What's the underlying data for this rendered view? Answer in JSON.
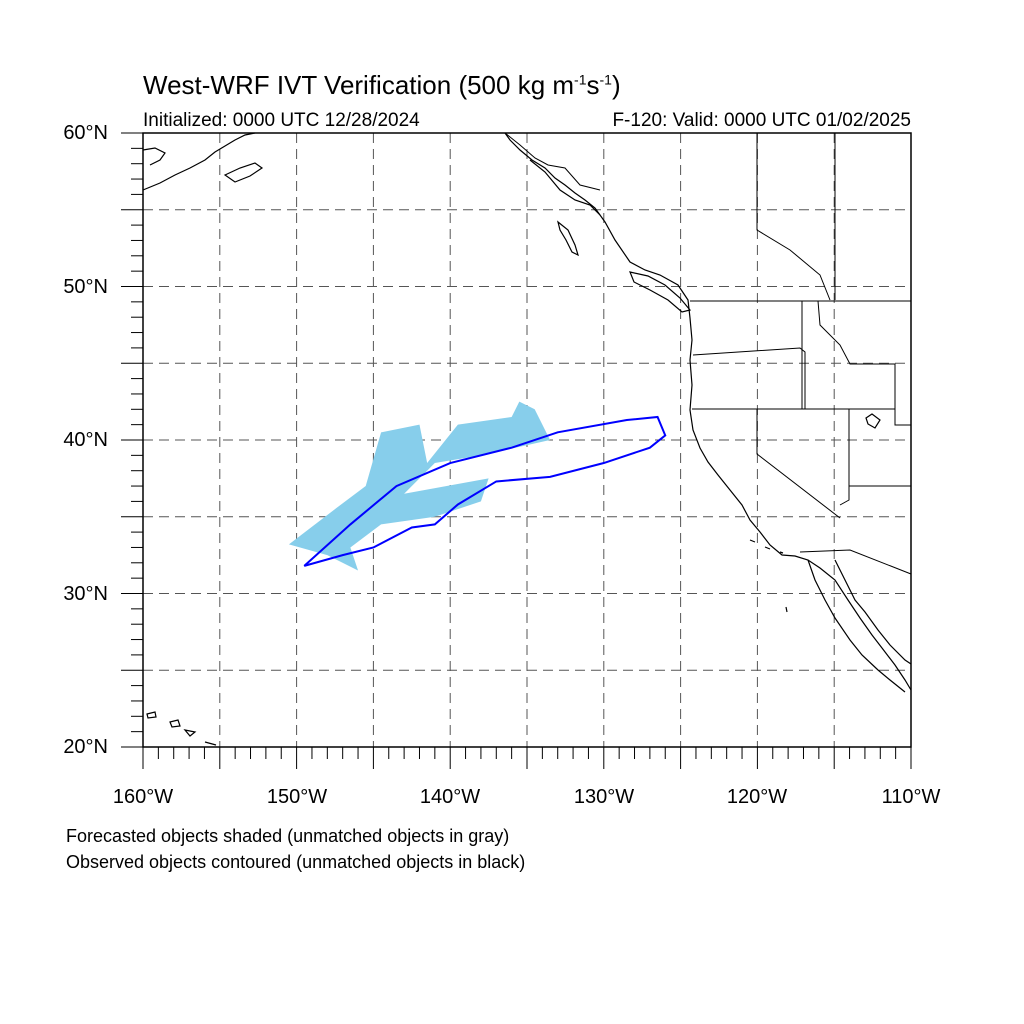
{
  "title": {
    "main": "West-WRF IVT Verification (500 kg m",
    "exp1": "-1",
    "mid": "s",
    "exp2": "-1",
    "end": ")"
  },
  "subtitle": {
    "left": "Initialized: 0000 UTC 12/28/2024",
    "right": "F-120: Valid: 0000 UTC 01/02/2025"
  },
  "axes": {
    "lat_labels": [
      "60°N",
      "50°N",
      "40°N",
      "30°N",
      "20°N"
    ],
    "lon_labels": [
      "160°W",
      "150°W",
      "140°W",
      "130°W",
      "120°W",
      "110°W"
    ],
    "lat_range": [
      20,
      60
    ],
    "lon_range": [
      -160,
      -110
    ],
    "grid": "dashed every 5 degrees"
  },
  "legend": {
    "line1": "Forecasted objects shaded (unmatched objects in gray)",
    "line2": "Observed objects contoured (unmatched objects in black)"
  },
  "colors": {
    "forecast_fill": "#87ceeb",
    "observed_contour": "#0000ff",
    "coastline": "#000000",
    "grid": "#555555"
  },
  "objects": {
    "forecast_shaded": [
      {
        "lon": -150.5,
        "lat": 33.2
      },
      {
        "lon": -147.5,
        "lat": 35.5
      },
      {
        "lon": -145.5,
        "lat": 37.0
      },
      {
        "lon": -144.5,
        "lat": 40.5
      },
      {
        "lon": -142.0,
        "lat": 41.0
      },
      {
        "lon": -141.5,
        "lat": 38.5
      },
      {
        "lon": -139.5,
        "lat": 41.0
      },
      {
        "lon": -136.0,
        "lat": 41.5
      },
      {
        "lon": -135.5,
        "lat": 42.5
      },
      {
        "lon": -134.5,
        "lat": 42.0
      },
      {
        "lon": -133.5,
        "lat": 40.0
      },
      {
        "lon": -138.0,
        "lat": 39.0
      },
      {
        "lon": -141.0,
        "lat": 38.5
      },
      {
        "lon": -143.0,
        "lat": 36.5
      },
      {
        "lon": -137.5,
        "lat": 37.5
      },
      {
        "lon": -138.0,
        "lat": 36.0
      },
      {
        "lon": -141.0,
        "lat": 35.0
      },
      {
        "lon": -144.5,
        "lat": 34.5
      },
      {
        "lon": -146.5,
        "lat": 33.0
      },
      {
        "lon": -146.0,
        "lat": 31.5
      },
      {
        "lon": -148.0,
        "lat": 32.5
      }
    ],
    "observed_contour": [
      {
        "lon": -149.5,
        "lat": 31.8
      },
      {
        "lon": -146.5,
        "lat": 34.5
      },
      {
        "lon": -143.5,
        "lat": 37.0
      },
      {
        "lon": -140.0,
        "lat": 38.5
      },
      {
        "lon": -136.0,
        "lat": 39.5
      },
      {
        "lon": -133.0,
        "lat": 40.5
      },
      {
        "lon": -128.5,
        "lat": 41.3
      },
      {
        "lon": -126.5,
        "lat": 41.5
      },
      {
        "lon": -126.0,
        "lat": 40.3
      },
      {
        "lon": -127.0,
        "lat": 39.5
      },
      {
        "lon": -130.0,
        "lat": 38.5
      },
      {
        "lon": -133.5,
        "lat": 37.6
      },
      {
        "lon": -137.0,
        "lat": 37.3
      },
      {
        "lon": -139.5,
        "lat": 35.8
      },
      {
        "lon": -141.0,
        "lat": 34.5
      },
      {
        "lon": -142.5,
        "lat": 34.3
      },
      {
        "lon": -145.0,
        "lat": 33.0
      },
      {
        "lon": -147.0,
        "lat": 32.5
      }
    ]
  }
}
